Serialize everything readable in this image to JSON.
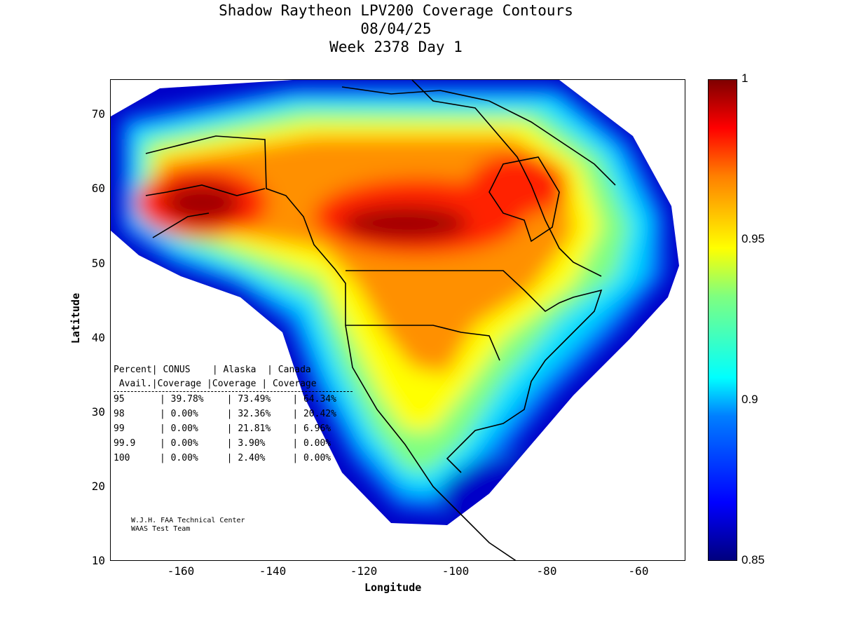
{
  "chart_data": {
    "type": "heatmap",
    "title": [
      "Shadow Raytheon LPV200 Coverage Contours",
      "08/04/25",
      "Week 2378 Day 1"
    ],
    "xlabel": "Longitude",
    "ylabel": "Latitude",
    "xlim": [
      -175,
      -50
    ],
    "ylim": [
      10,
      75
    ],
    "xticks": [
      "-160",
      "-140",
      "-120",
      "-100",
      "-80",
      "-60"
    ],
    "yticks": [
      "10",
      "20",
      "30",
      "40",
      "50",
      "60",
      "70"
    ],
    "colorbar": {
      "range": [
        0.85,
        1
      ],
      "ticks": [
        "1",
        "0.95",
        "0.9",
        "0.85"
      ],
      "colormap": "jet"
    },
    "table": {
      "header1": "Percent| CONUS    | Alaska  | Canada",
      "header2": " Avail.|Coverage |Coverage | Coverage",
      "rows": [
        {
          "avail": "95",
          "conus": "39.78%",
          "alaska": "73.49%",
          "canada": "64.34%"
        },
        {
          "avail": "98",
          "conus": "0.00%",
          "alaska": "32.36%",
          "canada": "20.42%"
        },
        {
          "avail": "99",
          "conus": "0.00%",
          "alaska": "21.81%",
          "canada": "6.96%"
        },
        {
          "avail": "99.9",
          "conus": "0.00%",
          "alaska": "3.90%",
          "canada": "0.00%"
        },
        {
          "avail": "100",
          "conus": "0.00%",
          "alaska": "2.40%",
          "canada": "0.00%"
        }
      ]
    },
    "credit": [
      "W.J.H. FAA Technical Center",
      "WAAS Test Team"
    ]
  }
}
